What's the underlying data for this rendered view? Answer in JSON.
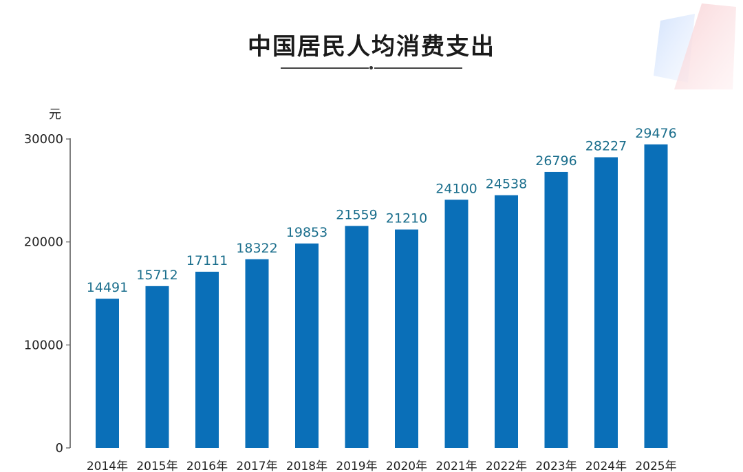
{
  "title": "中国居民人均消费支出",
  "colors": {
    "bar": "#0a6fb8",
    "data_label": "#1a6e8c",
    "axis": "#555555"
  },
  "chart_data": {
    "type": "bar",
    "title": "中国居民人均消费支出",
    "xlabel": "",
    "ylabel": "元",
    "ylim": [
      0,
      30000
    ],
    "y_ticks": [
      0,
      10000,
      20000,
      30000
    ],
    "grid": false,
    "categories": [
      "2014年",
      "2015年",
      "2016年",
      "2017年",
      "2018年",
      "2019年",
      "2020年",
      "2021年",
      "2022年",
      "2023年",
      "2024年",
      "2025年"
    ],
    "values": [
      14491,
      15712,
      17111,
      18322,
      19853,
      21559,
      21210,
      24100,
      24538,
      26796,
      28227,
      29476
    ]
  }
}
